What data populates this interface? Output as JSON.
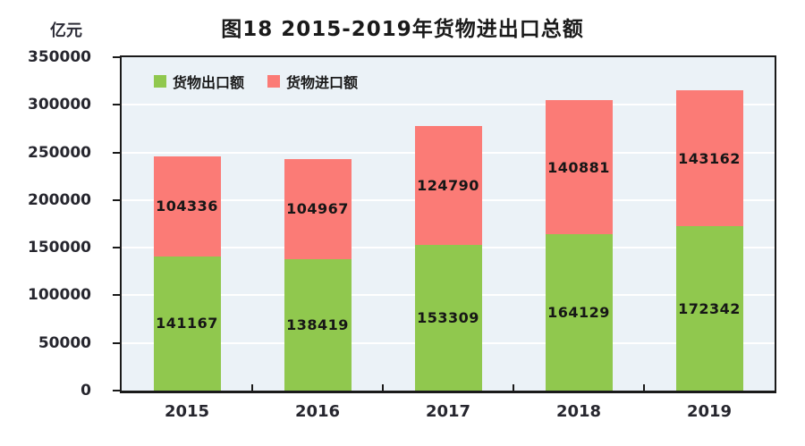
{
  "title": "图18  2015-2019年货物进出口总额",
  "unit_label": "亿元",
  "colors": {
    "export_green": "#90c84e",
    "import_red": "#fb7b76",
    "plot_bg": "#ebf2f7",
    "grid": "#ffffff",
    "axis": "#1a1a1a"
  },
  "legend": {
    "items": [
      {
        "label": "货物出口额",
        "color": "#90c84e"
      },
      {
        "label": "货物进口额",
        "color": "#fb7b76"
      }
    ]
  },
  "chart_data": {
    "type": "bar",
    "stacked": true,
    "title": "图18  2015-2019年货物进出口总额",
    "ylabel": "亿元",
    "xlabel": "",
    "categories": [
      "2015",
      "2016",
      "2017",
      "2018",
      "2019"
    ],
    "series": [
      {
        "name": "货物出口额",
        "color": "#90c84e",
        "values": [
          141167,
          138419,
          153309,
          164129,
          172342
        ]
      },
      {
        "name": "货物进口额",
        "color": "#fb7b76",
        "values": [
          104336,
          104967,
          124790,
          140881,
          143162
        ]
      }
    ],
    "totals": [
      245503,
      243386,
      278099,
      305010,
      315504
    ],
    "ylim": [
      0,
      350000
    ],
    "y_ticks": [
      0,
      50000,
      100000,
      150000,
      200000,
      250000,
      300000,
      350000
    ],
    "grid": true,
    "value_labels": true,
    "legend_position": "top-left-inside"
  }
}
